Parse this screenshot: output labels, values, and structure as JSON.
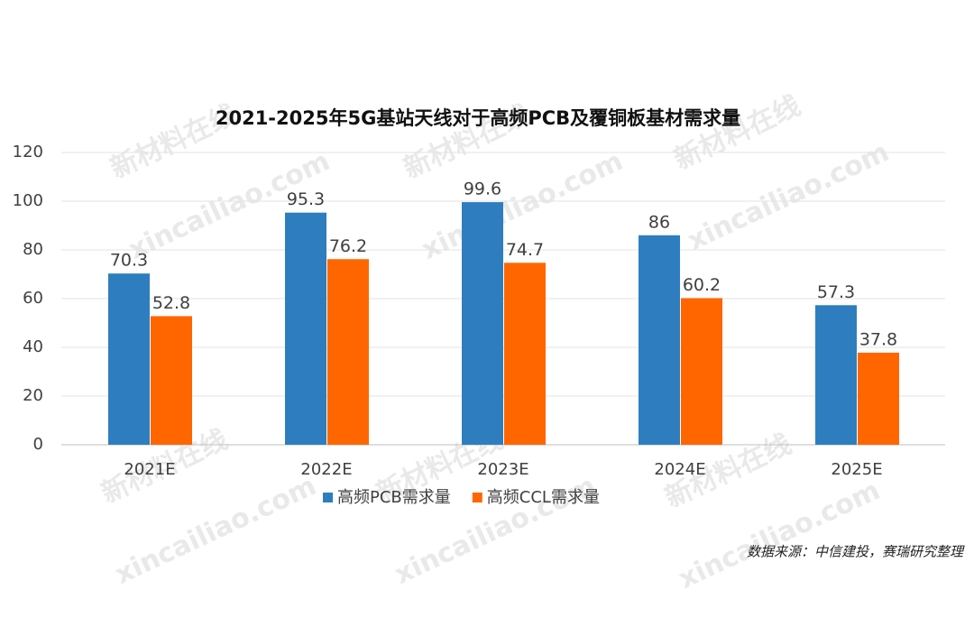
{
  "chart_data": {
    "type": "bar",
    "title": "2021-2025年5G基站天线对于高频PCB及覆铜板基材需求量",
    "categories": [
      "2021E",
      "2022E",
      "2023E",
      "2024E",
      "2025E"
    ],
    "series": [
      {
        "name": "高频PCB需求量",
        "color": "#2e7ebf",
        "values": [
          70.3,
          95.3,
          99.6,
          86,
          57.3
        ]
      },
      {
        "name": "高频CCL需求量",
        "color": "#ff6600",
        "values": [
          52.8,
          76.2,
          74.7,
          60.2,
          37.8
        ]
      }
    ],
    "ylim": [
      0,
      120
    ],
    "yticks": [
      0,
      20,
      40,
      60,
      80,
      100,
      120
    ],
    "grid": true,
    "legend": "bottom",
    "source": "数据来源：中信建投，赛瑞研究整理",
    "watermark": [
      "新材料在线",
      "xincailiao.com"
    ]
  }
}
